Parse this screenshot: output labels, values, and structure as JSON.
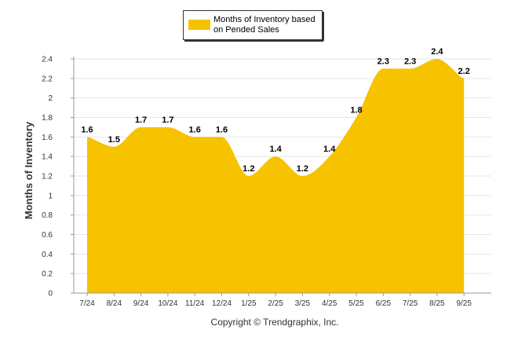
{
  "chart_data": {
    "type": "area",
    "categories": [
      "7/24",
      "8/24",
      "9/24",
      "10/24",
      "11/24",
      "12/24",
      "1/25",
      "2/25",
      "3/25",
      "4/25",
      "5/25",
      "6/25",
      "7/25",
      "8/25",
      "9/25"
    ],
    "series": [
      {
        "name": "Months of Inventory based on Pended Sales",
        "values": [
          1.6,
          1.5,
          1.7,
          1.7,
          1.6,
          1.6,
          1.2,
          1.4,
          1.2,
          1.4,
          1.8,
          2.3,
          2.3,
          2.4,
          2.2
        ]
      }
    ],
    "data_labels": [
      "1.6",
      "1.5",
      "1.7",
      "1.7",
      "1.6",
      "1.6",
      "1.2",
      "1.4",
      "1.2",
      "1.4",
      "1.8",
      "2.3",
      "2.3",
      "2.4",
      "2.2"
    ],
    "ylabel": "Months of Inventory",
    "xlabel": "",
    "ylim": [
      0,
      2.4
    ],
    "yticks": [
      0,
      0.2,
      0.4,
      0.6,
      0.8,
      1,
      1.2,
      1.4,
      1.6,
      1.8,
      2,
      2.2,
      2.4
    ],
    "ytick_labels": [
      "0",
      "0.2",
      "0.4",
      "0.6",
      "0.8",
      "1",
      "1.2",
      "1.4",
      "1.6",
      "1.8",
      "2",
      "2.2",
      "2.4"
    ],
    "legend": {
      "lines": [
        "Months of Inventory based",
        "on Pended Sales"
      ],
      "placement": "top-center"
    },
    "grid": true,
    "footer": "Copyright © Trendgraphix, Inc.",
    "colors": {
      "fill": "#F7C200",
      "grid": "#e6e6e6",
      "axis": "#9a9a9a"
    }
  }
}
